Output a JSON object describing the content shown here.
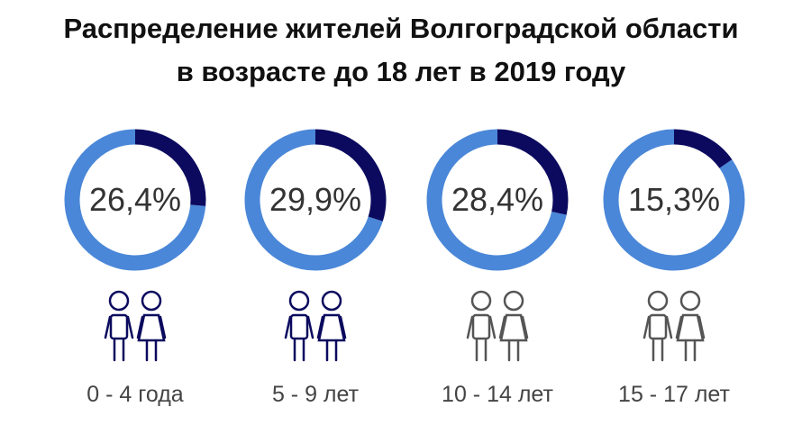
{
  "chart_data": {
    "type": "donut",
    "title": [
      "Распределение жителей Волгоградской области",
      "в возрасте до 18 лет в 2019 году"
    ],
    "categories": [
      "0 - 4 года",
      "5 - 9 лет",
      "10 - 14 лет",
      "15 - 17 лет"
    ],
    "values": [
      26.4,
      29.9,
      28.4,
      15.3
    ],
    "value_labels": [
      "26,4%",
      "29,9%",
      "28,4%",
      "15,3%"
    ],
    "color": "#0b0a5e",
    "rest_color": "#4a87d8"
  }
}
